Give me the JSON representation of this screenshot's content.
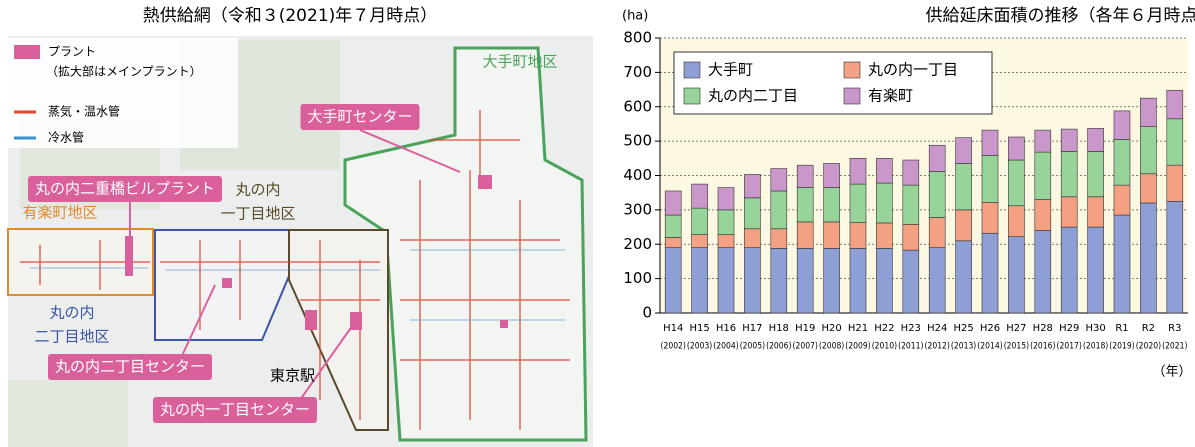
{
  "map": {
    "title": "熱供給網（令和３(2021)年７月時点）",
    "legend": [
      {
        "label": "プラント",
        "note": "（拡大部はメインプラント）",
        "color": "#d9609a"
      },
      {
        "label": "蒸気・温水管",
        "color": "#e0452e"
      },
      {
        "label": "冷水管",
        "color": "#3a8fd0"
      }
    ],
    "areas": [
      {
        "lines": [
          "大手町地区"
        ],
        "color": "#4aa35a"
      },
      {
        "lines": [
          "丸の内",
          "一丁目地区"
        ],
        "color": "#5a4a2a"
      },
      {
        "lines": [
          "有楽町地区"
        ],
        "color": "#e08a2e"
      },
      {
        "lines": [
          "丸の内",
          "二丁目地区"
        ],
        "color": "#3b55a8"
      }
    ],
    "plants": [
      "大手町センター",
      "丸の内二重橋ビルプラント",
      "丸の内二丁目センター",
      "丸の内一丁目センター"
    ],
    "landmark": "東京駅"
  },
  "chart_data": {
    "type": "stacked_bar",
    "title": "供給延床面積の推移（各年６月時点）",
    "y_unit": "(ha)",
    "x_unit": "（年）",
    "categories": [
      "H14",
      "H15",
      "H16",
      "H17",
      "H18",
      "H19",
      "H20",
      "H21",
      "H22",
      "H23",
      "H24",
      "H25",
      "H26",
      "H27",
      "H28",
      "H29",
      "H30",
      "R1",
      "R2",
      "R3"
    ],
    "category_years": [
      "(2002)",
      "(2003)",
      "(2004)",
      "(2005)",
      "(2006)",
      "(2007)",
      "(2008)",
      "(2009)",
      "(2010)",
      "(2011)",
      "(2012)",
      "(2013)",
      "(2014)",
      "(2015)",
      "(2016)",
      "(2017)",
      "(2018)",
      "(2019)",
      "(2020)",
      "(2021)"
    ],
    "series": [
      {
        "name": "大手町",
        "color": "#8e9fd6",
        "values": [
          190,
          190,
          190,
          190,
          188,
          188,
          188,
          188,
          188,
          183,
          190,
          210,
          232,
          222,
          240,
          250,
          250,
          285,
          320,
          325
        ]
      },
      {
        "name": "丸の内一丁目",
        "color": "#f4a083",
        "values": [
          30,
          38,
          38,
          55,
          57,
          77,
          77,
          75,
          74,
          75,
          88,
          90,
          90,
          90,
          90,
          88,
          88,
          87,
          85,
          105
        ]
      },
      {
        "name": "丸の内二丁目",
        "color": "#96d49a",
        "values": [
          65,
          77,
          72,
          90,
          110,
          100,
          100,
          112,
          116,
          114,
          134,
          135,
          136,
          133,
          138,
          132,
          132,
          133,
          137,
          135
        ]
      },
      {
        "name": "有楽町",
        "color": "#c997c9",
        "values": [
          70,
          70,
          65,
          68,
          65,
          65,
          70,
          75,
          72,
          73,
          76,
          75,
          74,
          67,
          64,
          65,
          67,
          83,
          83,
          83
        ]
      }
    ],
    "ylim": [
      0,
      800
    ],
    "yticks": [
      0,
      100,
      200,
      300,
      400,
      500,
      600,
      700,
      800
    ],
    "grid": true,
    "legend_position": "upper left"
  }
}
